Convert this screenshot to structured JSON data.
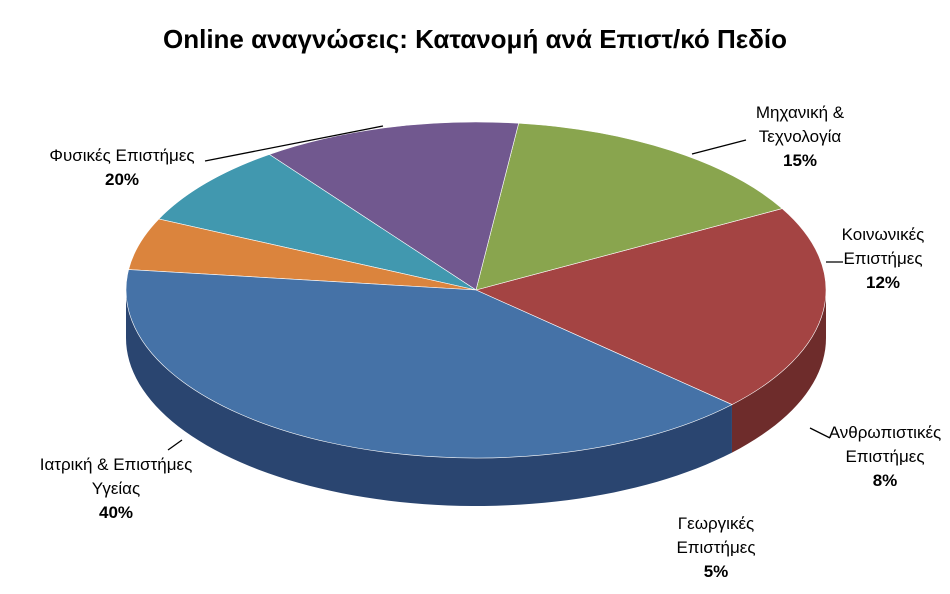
{
  "chart_data": {
    "type": "pie",
    "title": "Online αναγνώσεις: Κατανομή ανά Επιστ/κό Πεδίο",
    "legend": "none",
    "style": "3d",
    "slices": [
      {
        "label": [
          "Φυσικές Επιστήμες"
        ],
        "value": 20,
        "pct": "20%",
        "color": "#A44443",
        "side": "#6E2C2B"
      },
      {
        "label": [
          "Μηχανική &",
          "Τεχνολογία"
        ],
        "value": 15,
        "pct": "15%",
        "color": "#89A54E",
        "side": "#5A6E32"
      },
      {
        "label": [
          "Κοινωνικές",
          "Επιστήμες"
        ],
        "value": 12,
        "pct": "12%",
        "color": "#71588F",
        "side": "#4A3A5E"
      },
      {
        "label": [
          "Ανθρωπιστικές",
          "Επιστήμες"
        ],
        "value": 8,
        "pct": "8%",
        "color": "#4198AF",
        "side": "#1C3F4A"
      },
      {
        "label": [
          "Γεωργικές",
          "Επιστήμες"
        ],
        "value": 5,
        "pct": "5%",
        "color": "#DB843D",
        "side": "#5A3517"
      },
      {
        "label": [
          "Ιατρική & Επιστήμες",
          "Υγείας"
        ],
        "value": 40,
        "pct": "40%",
        "color": "#4572A7",
        "side": "#2A4570"
      }
    ]
  }
}
